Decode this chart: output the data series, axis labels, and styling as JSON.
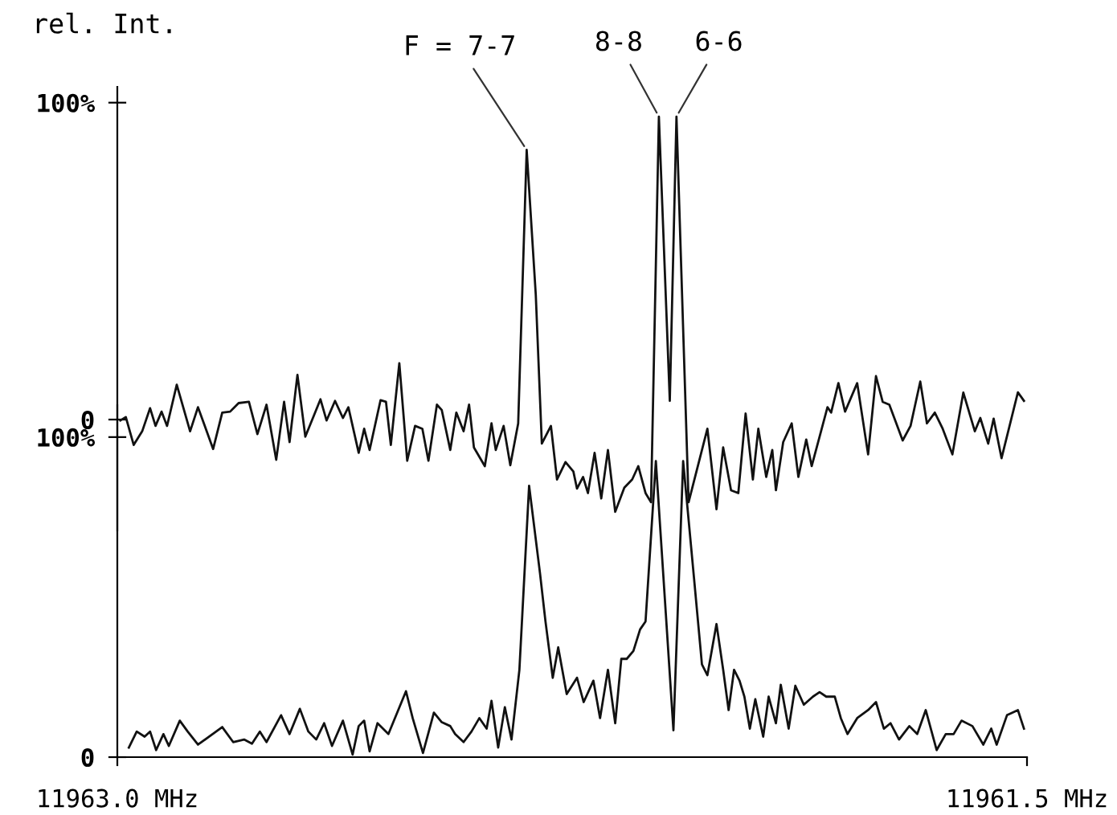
{
  "chart_data": [
    {
      "type": "line",
      "ylabel": "rel. Int.",
      "xlim": [
        11963.0,
        11961.5
      ],
      "ylim": [
        -35,
        105
      ],
      "yticks": [
        0,
        {
          "value": 100,
          "label": "100%"
        }
      ],
      "tick_labels": "y",
      "grid": false,
      "marker": "none",
      "line_style": "solid",
      "annotations": [
        {
          "text": "F = 7-7",
          "x": 11962.325,
          "y": 85.1
        },
        {
          "text": "8-8",
          "x": 11962.107,
          "y": 95.6
        },
        {
          "text": "6-6",
          "x": 11962.078,
          "y": 95.6
        }
      ],
      "series": [
        {
          "color": "#111111",
          "x": [
            11962.995,
            11962.986,
            11962.973,
            11962.959,
            11962.946,
            11962.937,
            11962.927,
            11962.918,
            11962.902,
            11962.88,
            11962.867,
            11962.842,
            11962.827,
            11962.814,
            11962.8,
            11962.783,
            11962.769,
            11962.754,
            11962.738,
            11962.725,
            11962.716,
            11962.703,
            11962.69,
            11962.665,
            11962.655,
            11962.641,
            11962.628,
            11962.619,
            11962.602,
            11962.593,
            11962.584,
            11962.566,
            11962.557,
            11962.549,
            11962.535,
            11962.522,
            11962.509,
            11962.497,
            11962.487,
            11962.473,
            11962.465,
            11962.451,
            11962.441,
            11962.429,
            11962.42,
            11962.412,
            11962.394,
            11962.383,
            11962.376,
            11962.363,
            11962.352,
            11962.339,
            11962.325,
            11962.31,
            11962.3,
            11962.285,
            11962.275,
            11962.261,
            11962.248,
            11962.242,
            11962.232,
            11962.224,
            11962.213,
            11962.202,
            11962.191,
            11962.179,
            11962.164,
            11962.151,
            11962.141,
            11962.129,
            11962.12,
            11962.107,
            11962.089,
            11962.078,
            11962.058,
            11962.027,
            11962.012,
            11962.001,
            11961.988,
            11961.976,
            11961.964,
            11961.952,
            11961.943,
            11961.93,
            11961.92,
            11961.914,
            11961.902,
            11961.888,
            11961.877,
            11961.864,
            11961.855,
            11961.829,
            11961.823,
            11961.811,
            11961.8,
            11961.78,
            11961.762,
            11961.749,
            11961.738,
            11961.727,
            11961.705,
            11961.692,
            11961.676,
            11961.665,
            11961.652,
            11961.639,
            11961.623,
            11961.605,
            11961.586,
            11961.577,
            11961.564,
            11961.555,
            11961.542,
            11961.515,
            11961.505
          ],
          "values": [
            -0.3,
            0.8,
            -8.0,
            -3.7,
            3.6,
            -2.0,
            2.5,
            -2.0,
            11.0,
            -3.7,
            3.9,
            -9.3,
            2.2,
            2.5,
            5.2,
            5.6,
            -4.6,
            4.7,
            -12.7,
            5.6,
            -7.1,
            14.1,
            -5.4,
            6.4,
            -0.3,
            5.9,
            0.5,
            3.9,
            -10.5,
            -2.9,
            -9.6,
            6.1,
            5.6,
            -8.0,
            17.8,
            -13.0,
            -2.0,
            -2.9,
            -13.0,
            4.7,
            3.0,
            -9.6,
            2.2,
            -3.7,
            4.7,
            -8.8,
            -14.7,
            -1.2,
            -9.6,
            -2.0,
            -14.4,
            -1.2,
            85.1,
            39.4,
            -7.6,
            -2.0,
            -18.9,
            -13.4,
            -16.4,
            -21.8,
            -18.1,
            -23.2,
            -10.5,
            -24.9,
            -9.6,
            -29.1,
            -21.5,
            -18.9,
            -14.7,
            -23.2,
            -26.1,
            95.6,
            5.9,
            95.6,
            -26.1,
            -2.9,
            -28.3,
            -8.8,
            -22.3,
            -23.2,
            1.9,
            -18.9,
            -2.9,
            -18.1,
            -9.6,
            -22.3,
            -7.1,
            -1.2,
            -18.1,
            -6.3,
            -14.7,
            3.9,
            2.2,
            11.5,
            2.5,
            11.5,
            -11.0,
            13.7,
            5.6,
            4.7,
            -6.6,
            -2.0,
            12.0,
            -1.2,
            2.2,
            -2.9,
            -11.0,
            8.5,
            -3.7,
            0.5,
            -7.6,
            0.3,
            -12.2,
            8.6,
            5.9
          ]
        }
      ]
    },
    {
      "type": "line",
      "xlim": [
        11963.0,
        11961.5
      ],
      "xticks": [
        {
          "value": 11963.0,
          "label": "11963.0 MHz"
        },
        {
          "value": 11961.5,
          "label": "11961.5 MHz"
        }
      ],
      "ylim": [
        0,
        110
      ],
      "yticks": [
        0,
        {
          "value": 100,
          "label": "100%"
        }
      ],
      "grid": false,
      "marker": "none",
      "line_style": "solid",
      "series": [
        {
          "color": "#111111",
          "x": [
            11962.981,
            11962.968,
            11962.955,
            11962.946,
            11962.936,
            11962.924,
            11962.915,
            11962.897,
            11962.884,
            11962.867,
            11962.827,
            11962.809,
            11962.791,
            11962.778,
            11962.765,
            11962.754,
            11962.73,
            11962.716,
            11962.699,
            11962.685,
            11962.672,
            11962.659,
            11962.646,
            11962.628,
            11962.612,
            11962.602,
            11962.593,
            11962.584,
            11962.571,
            11962.553,
            11962.524,
            11962.513,
            11962.496,
            11962.478,
            11962.465,
            11962.451,
            11962.443,
            11962.429,
            11962.416,
            11962.403,
            11962.391,
            11962.383,
            11962.372,
            11962.361,
            11962.35,
            11962.337,
            11962.321,
            11962.303,
            11962.294,
            11962.282,
            11962.273,
            11962.259,
            11962.242,
            11962.231,
            11962.215,
            11962.204,
            11962.191,
            11962.179,
            11962.169,
            11962.16,
            11962.149,
            11962.138,
            11962.129,
            11962.112,
            11962.083,
            11962.067,
            11962.049,
            11962.036,
            11962.027,
            11962.012,
            11962.001,
            11961.992,
            11961.983,
            11961.974,
            11961.966,
            11961.957,
            11961.948,
            11961.935,
            11961.926,
            11961.914,
            11961.906,
            11961.893,
            11961.882,
            11961.868,
            11961.853,
            11961.842,
            11961.831,
            11961.817,
            11961.807,
            11961.796,
            11961.78,
            11961.762,
            11961.749,
            11961.736,
            11961.725,
            11961.711,
            11961.694,
            11961.681,
            11961.667,
            11961.649,
            11961.634,
            11961.621,
            11961.608,
            11961.59,
            11961.572,
            11961.559,
            11961.55,
            11961.533,
            11961.515,
            11961.505
          ],
          "values": [
            3.0,
            8.0,
            6.4,
            8.0,
            2.2,
            7.2,
            3.5,
            11.4,
            8.0,
            3.9,
            9.4,
            4.7,
            5.5,
            4.2,
            8.0,
            4.7,
            13.1,
            7.2,
            15.1,
            8.0,
            5.5,
            10.6,
            3.5,
            11.4,
            0.8,
            9.7,
            11.4,
            1.8,
            10.6,
            7.2,
            20.6,
            12.2,
            1.3,
            13.9,
            10.9,
            9.7,
            7.2,
            4.7,
            8.0,
            12.2,
            8.9,
            17.6,
            3.0,
            15.6,
            5.5,
            27.3,
            84.8,
            57.4,
            42.4,
            24.8,
            34.3,
            19.7,
            24.8,
            17.2,
            23.9,
            12.2,
            27.3,
            10.6,
            30.7,
            30.7,
            33.2,
            39.9,
            42.4,
            92.5,
            8.4,
            92.5,
            55.8,
            29.0,
            25.6,
            41.6,
            27.3,
            14.7,
            27.3,
            23.9,
            18.9,
            8.9,
            18.1,
            6.4,
            18.9,
            10.6,
            22.6,
            8.9,
            22.3,
            16.4,
            18.9,
            20.3,
            18.9,
            18.9,
            12.2,
            7.2,
            12.2,
            14.7,
            17.2,
            8.9,
            10.6,
            5.5,
            9.7,
            7.2,
            14.7,
            2.2,
            7.2,
            7.2,
            11.4,
            9.7,
            3.9,
            8.9,
            3.9,
            13.1,
            14.7,
            8.9
          ]
        }
      ]
    }
  ]
}
